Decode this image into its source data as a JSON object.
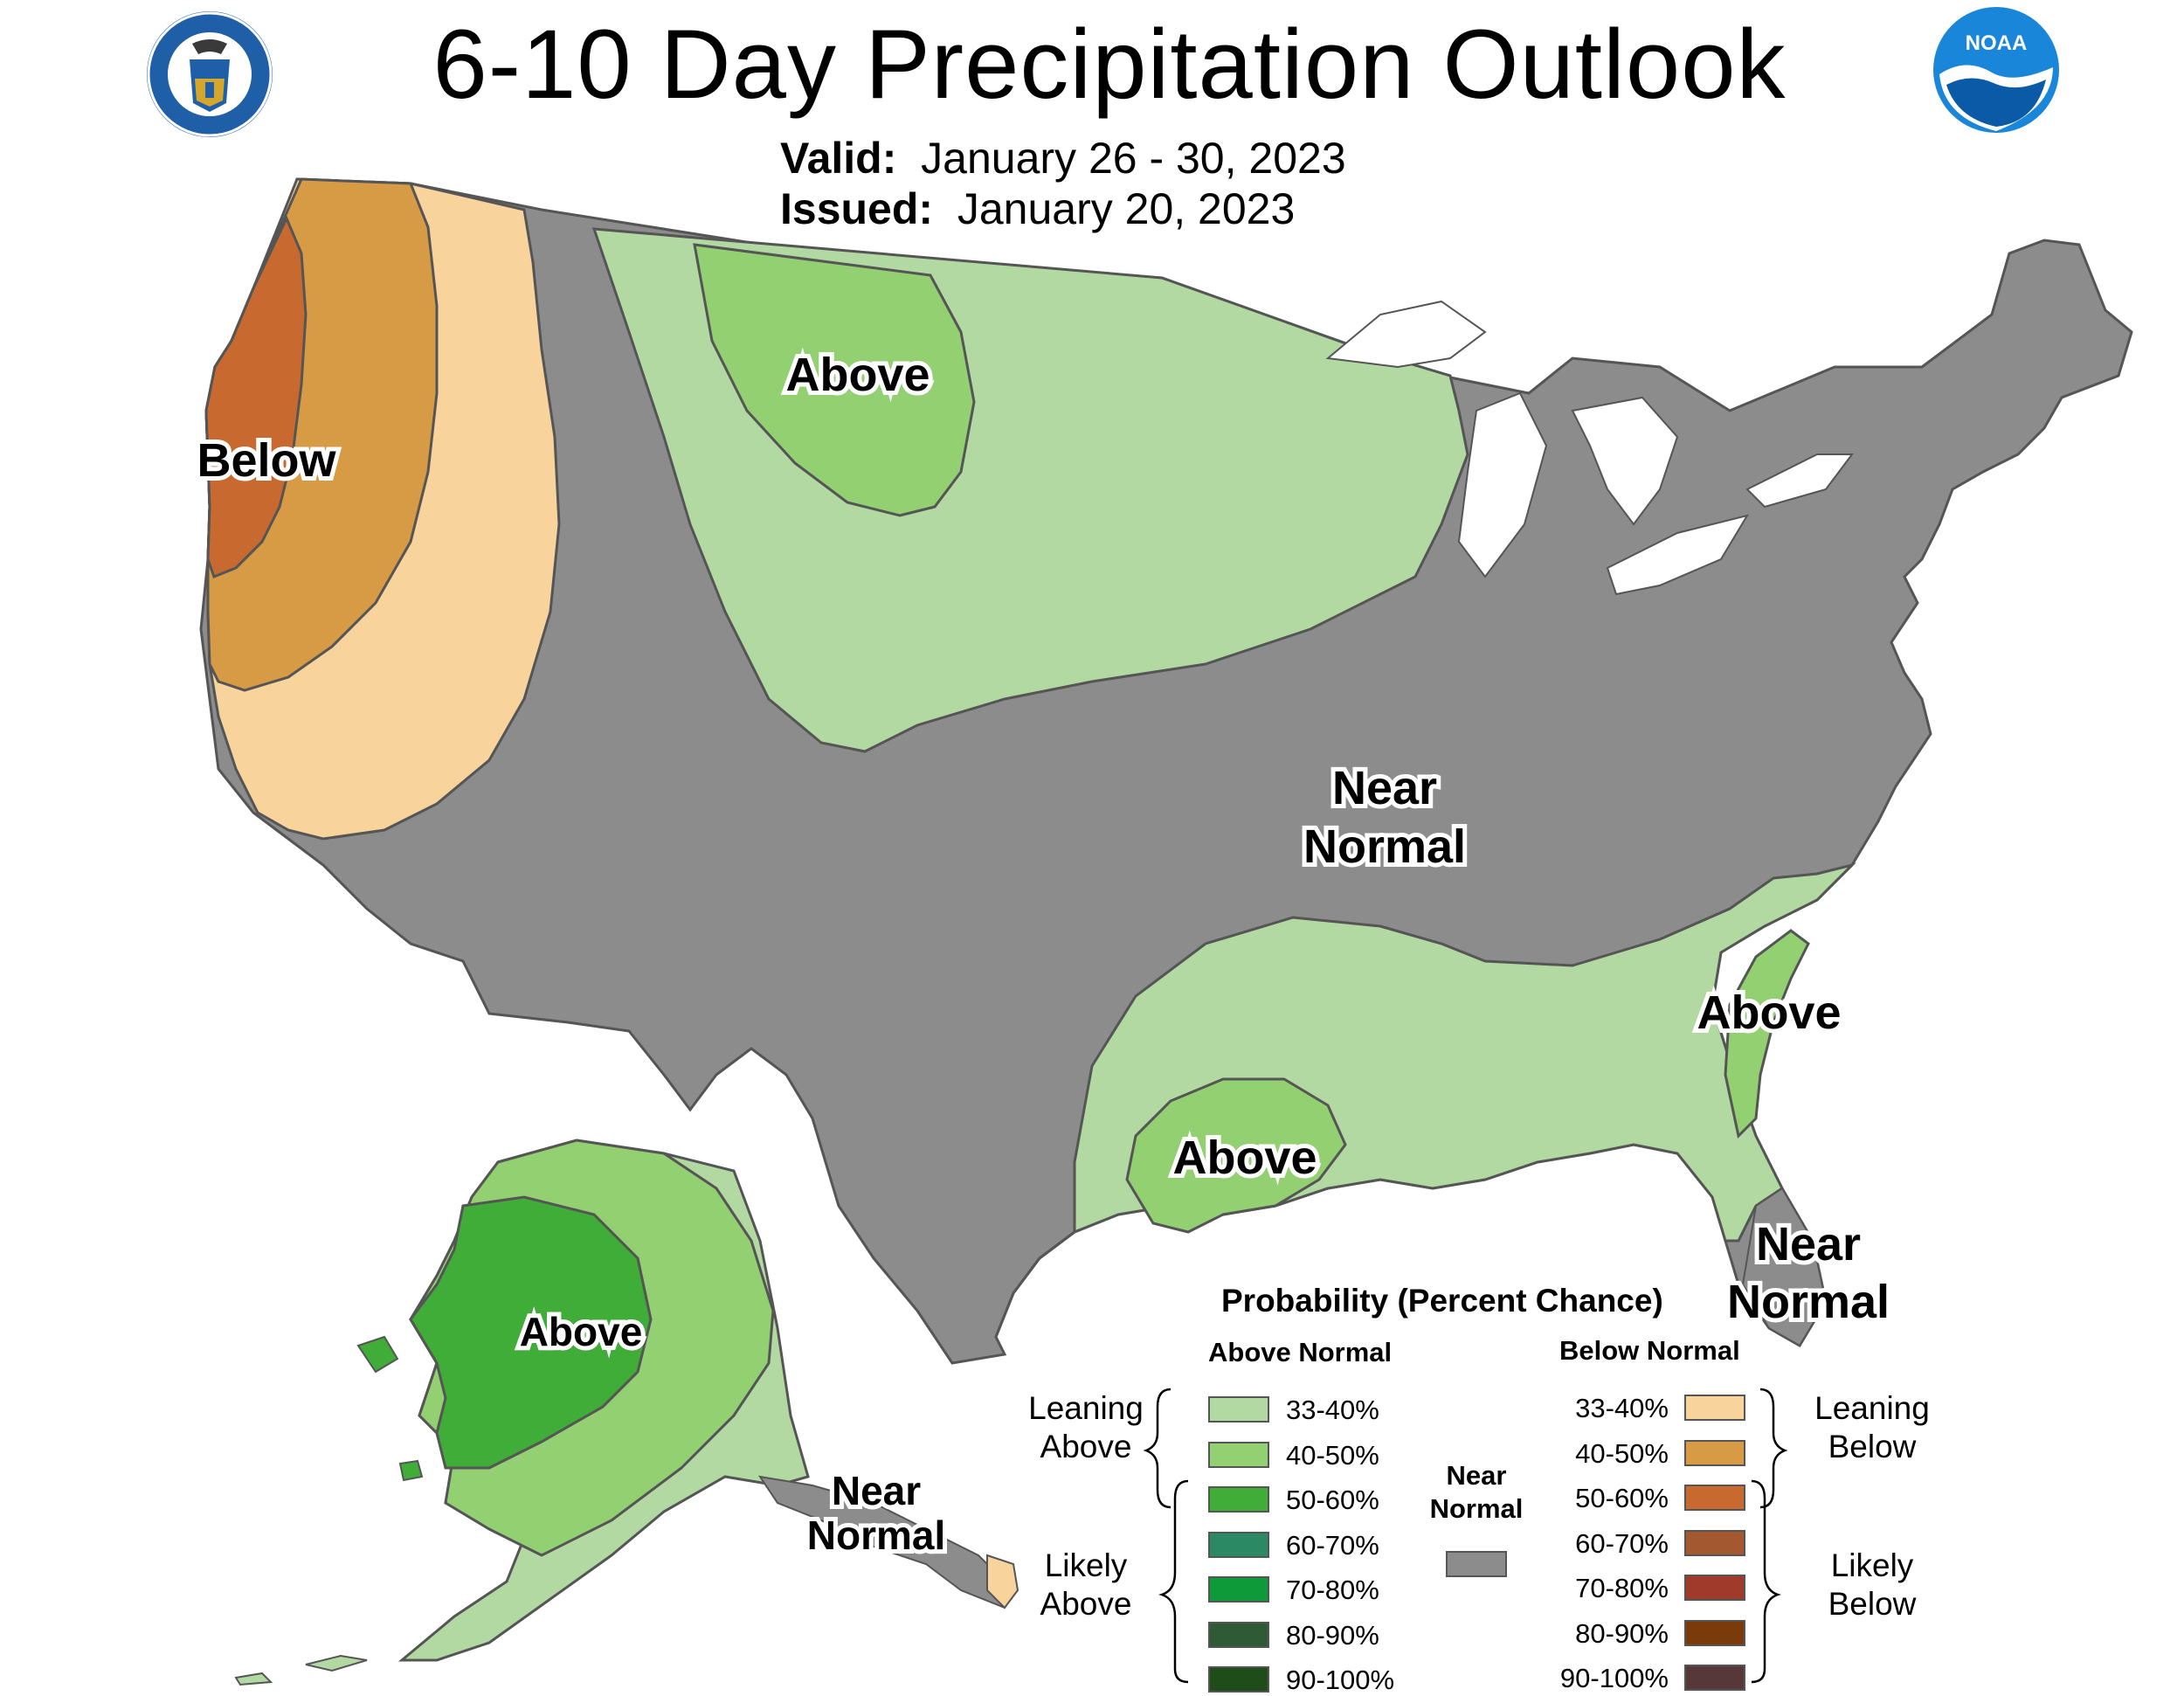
{
  "header": {
    "title": "6-10 Day Precipitation Outlook",
    "valid_label": "Valid:",
    "valid_value": "January 26 - 30, 2023",
    "issued_label": "Issued:",
    "issued_value": "January 20, 2023",
    "left_logo": "department-of-commerce-seal",
    "left_logo_text": "DEPARTMENT OF COMMERCE · UNITED STATES OF AMERICA",
    "right_logo": "noaa-logo",
    "right_logo_text": "NOAA"
  },
  "map": {
    "labels": {
      "below_west": "Below",
      "above_north": "Above",
      "near_normal_central": [
        "Near",
        "Normal"
      ],
      "above_southeast": "Above",
      "above_texas": "Above",
      "near_normal_florida": [
        "Near",
        "Normal"
      ],
      "above_alaska": "Above",
      "near_normal_alaska": [
        "Near",
        "Normal"
      ]
    },
    "colors": {
      "near_normal": "#8c8c8c",
      "above_33_40": "#b3d9a3",
      "above_40_50": "#92d072",
      "above_50_60": "#3fad37",
      "below_33_40": "#f8d39b",
      "below_40_50": "#d79a45",
      "below_50_60": "#c86a2f"
    }
  },
  "legend": {
    "title": "Probability (Percent Chance)",
    "above_header": "Above Normal",
    "below_header": "Below Normal",
    "near_header": [
      "Near",
      "Normal"
    ],
    "leaning_above": [
      "Leaning",
      "Above"
    ],
    "likely_above": [
      "Likely",
      "Above"
    ],
    "leaning_below": [
      "Leaning",
      "Below"
    ],
    "likely_below": [
      "Likely",
      "Below"
    ],
    "above": [
      {
        "range": "33-40%",
        "color": "#b3d9a3"
      },
      {
        "range": "40-50%",
        "color": "#92d072"
      },
      {
        "range": "50-60%",
        "color": "#3fad37"
      },
      {
        "range": "60-70%",
        "color": "#2b8a64"
      },
      {
        "range": "70-80%",
        "color": "#0f9a3a"
      },
      {
        "range": "80-90%",
        "color": "#2e5a36"
      },
      {
        "range": "90-100%",
        "color": "#1f4d1a"
      }
    ],
    "below": [
      {
        "range": "33-40%",
        "color": "#f8d39b"
      },
      {
        "range": "40-50%",
        "color": "#d79a45"
      },
      {
        "range": "50-60%",
        "color": "#c86a2f"
      },
      {
        "range": "60-70%",
        "color": "#a3582f"
      },
      {
        "range": "70-80%",
        "color": "#a03b2c"
      },
      {
        "range": "80-90%",
        "color": "#7b3a0a"
      },
      {
        "range": "90-100%",
        "color": "#56383a"
      }
    ],
    "near_color": "#8c8c8c"
  }
}
